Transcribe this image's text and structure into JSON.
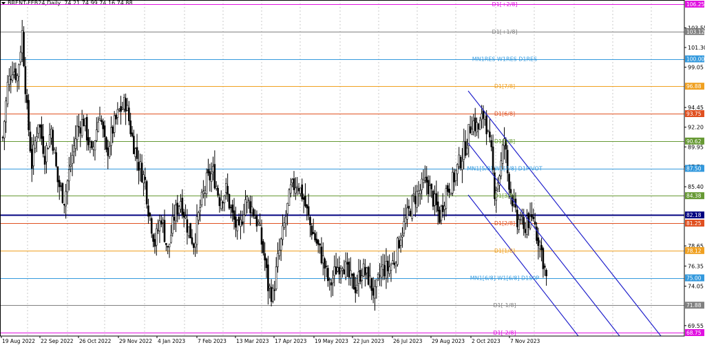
{
  "header": {
    "symbol": "BRENT-FEB24,Daily",
    "ohlc": "74.21 74.99 74.16 74.88"
  },
  "price_axis": {
    "ticks": [
      "103.55",
      "101.30",
      "99.05",
      "94.45",
      "92.20",
      "89.95",
      "87.70",
      "85.40",
      "78.65",
      "76.35",
      "74.05",
      "69.55"
    ]
  },
  "time_axis": {
    "labels": [
      "19 Aug 2022",
      "22 Sep 2022",
      "26 Oct 2022",
      "29 Nov 2022",
      "4 Jan 2023",
      "7 Feb 2023",
      "13 Mar 2023",
      "17 Apr 2023",
      "19 May 2023",
      "22 Jun 2023",
      "26 Jul 2023",
      "29 Aug 2023",
      "2 Oct 2023",
      "7 Nov 2023"
    ]
  },
  "levels": [
    {
      "price": 106.25,
      "badge": "106.25",
      "label": "D1[+2/8]",
      "color": "#e010e0",
      "badge_color": "#e010e0"
    },
    {
      "price": 103.12,
      "badge": "103.12",
      "label": "D1[+1/8]",
      "color": "#808080",
      "badge_color": "#808080"
    },
    {
      "price": 100.0,
      "badge": "100.00",
      "label": "MN1RES W1RES D1RES",
      "color": "#3399dd",
      "badge_color": "#3399dd"
    },
    {
      "price": 96.88,
      "badge": "96.88",
      "label": "D1[7/8]",
      "color": "#f0a020",
      "badge_color": "#f0a020"
    },
    {
      "price": 93.75,
      "badge": "93.75",
      "label": "D1[6/8]",
      "color": "#e05020",
      "badge_color": "#e05020"
    },
    {
      "price": 90.62,
      "badge": "90.62",
      "label": "D1[5/8]",
      "color": "#669933",
      "badge_color": "#669933"
    },
    {
      "price": 87.5,
      "badge": "87.50",
      "label": "MN1[5/8] W1[7/8] D1PIVOT",
      "color": "#3399dd",
      "badge_color": "#3399dd"
    },
    {
      "price": 84.38,
      "badge": "84.38",
      "label": "D1[3/8]",
      "color": "#669933",
      "badge_color": "#669933"
    },
    {
      "price": 82.18,
      "badge": "82.18",
      "label": "",
      "color": "#000080",
      "badge_color": "#000080"
    },
    {
      "price": 81.25,
      "badge": "81.25",
      "label": "D1[2/8]",
      "color": "#e05020",
      "badge_color": "#e05020"
    },
    {
      "price": 78.12,
      "badge": "78.12",
      "label": "D1[1/8]",
      "color": "#f0a020",
      "badge_color": "#f0a020"
    },
    {
      "price": 75.0,
      "badge": "75.00",
      "label": "MN1[6/8] W1[6/8] D1S0P",
      "color": "#3399dd",
      "badge_color": "#3399dd"
    },
    {
      "price": 71.88,
      "badge": "71.88",
      "label": "D1[-1/8]",
      "color": "#808080",
      "badge_color": "#808080"
    },
    {
      "price": 68.75,
      "badge": "68.75",
      "label": "D1[-2/8]",
      "color": "#e010e0",
      "badge_color": "#e010e0"
    }
  ],
  "chart_data": {
    "type": "candlestick",
    "series_close_path": [
      [
        0,
        91
      ],
      [
        3,
        97
      ],
      [
        6,
        99
      ],
      [
        9,
        98
      ],
      [
        12,
        103
      ],
      [
        15,
        94
      ],
      [
        18,
        88
      ],
      [
        22,
        93
      ],
      [
        26,
        89
      ],
      [
        30,
        92
      ],
      [
        34,
        86
      ],
      [
        38,
        84
      ],
      [
        42,
        88
      ],
      [
        46,
        92
      ],
      [
        50,
        93
      ],
      [
        55,
        89
      ],
      [
        60,
        94
      ],
      [
        64,
        89
      ],
      [
        68,
        92
      ],
      [
        72,
        94
      ],
      [
        76,
        95
      ],
      [
        80,
        91
      ],
      [
        84,
        88
      ],
      [
        88,
        86
      ],
      [
        90,
        83
      ],
      [
        94,
        79
      ],
      [
        98,
        82
      ],
      [
        102,
        78
      ],
      [
        106,
        82
      ],
      [
        110,
        84
      ],
      [
        114,
        81
      ],
      [
        118,
        79
      ],
      [
        122,
        83
      ],
      [
        126,
        86
      ],
      [
        130,
        87
      ],
      [
        134,
        84
      ],
      [
        138,
        85
      ],
      [
        142,
        82
      ],
      [
        146,
        80
      ],
      [
        150,
        84
      ],
      [
        154,
        83
      ],
      [
        158,
        81
      ],
      [
        162,
        77
      ],
      [
        164,
        74
      ],
      [
        167,
        73
      ],
      [
        170,
        77
      ],
      [
        174,
        81
      ],
      [
        178,
        85
      ],
      [
        182,
        86
      ],
      [
        186,
        84
      ],
      [
        190,
        81
      ],
      [
        194,
        79
      ],
      [
        198,
        77
      ],
      [
        202,
        74
      ],
      [
        206,
        76
      ],
      [
        210,
        77
      ],
      [
        214,
        75
      ],
      [
        218,
        74
      ],
      [
        222,
        76
      ],
      [
        226,
        75
      ],
      [
        230,
        73
      ],
      [
        234,
        76
      ],
      [
        238,
        76
      ],
      [
        242,
        77
      ],
      [
        246,
        80
      ],
      [
        250,
        82
      ],
      [
        254,
        84
      ],
      [
        258,
        85
      ],
      [
        262,
        86
      ],
      [
        266,
        84
      ],
      [
        270,
        82
      ],
      [
        274,
        85
      ],
      [
        278,
        86
      ],
      [
        282,
        88
      ],
      [
        286,
        90
      ],
      [
        290,
        93
      ],
      [
        294,
        92
      ],
      [
        298,
        94
      ],
      [
        300,
        91
      ],
      [
        302,
        89
      ],
      [
        304,
        85
      ],
      [
        306,
        86
      ],
      [
        308,
        88
      ],
      [
        310,
        91
      ],
      [
        312,
        87
      ],
      [
        314,
        85
      ],
      [
        316,
        83
      ],
      [
        318,
        81
      ],
      [
        320,
        82
      ],
      [
        322,
        80
      ],
      [
        324,
        82
      ],
      [
        326,
        81
      ],
      [
        328,
        82
      ],
      [
        330,
        80
      ],
      [
        332,
        79
      ],
      [
        334,
        77
      ],
      [
        336,
        74.9
      ]
    ]
  },
  "channel": {
    "color": "#2222cc"
  }
}
